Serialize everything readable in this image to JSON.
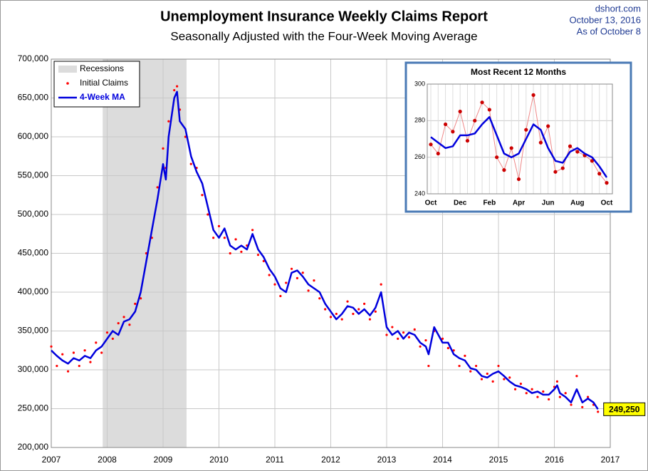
{
  "chart_data": {
    "type": "line",
    "title": "Unemployment Insurance Weekly Claims Report",
    "subtitle": "Seasonally Adjusted with the Four-Week Moving Average",
    "source": [
      "dshort.com",
      "October 13, 2016",
      "As of October 8"
    ],
    "legend": "top-left",
    "grid": true,
    "recession": {
      "name": "Recessions",
      "start": 2007.92,
      "end": 2009.42,
      "color": "#dcdcdc"
    },
    "xlim": [
      2007,
      2017
    ],
    "xticks": [
      2007,
      2008,
      2009,
      2010,
      2011,
      2012,
      2013,
      2014,
      2015,
      2016,
      2017
    ],
    "ylim": [
      200000,
      700000
    ],
    "yticks": [
      {
        "value": 200000,
        "label": "200,000"
      },
      {
        "value": 250000,
        "label": "250,000"
      },
      {
        "value": 300000,
        "label": "300,000"
      },
      {
        "value": 350000,
        "label": "350,000"
      },
      {
        "value": 400000,
        "label": "400,000"
      },
      {
        "value": 450000,
        "label": "450,000"
      },
      {
        "value": 500000,
        "label": "500,000"
      },
      {
        "value": 550000,
        "label": "550,000"
      },
      {
        "value": 600000,
        "label": "600,000"
      },
      {
        "value": 650000,
        "label": "650,000"
      },
      {
        "value": 700000,
        "label": "700,000"
      }
    ],
    "x": [
      2007.0,
      2007.1,
      2007.2,
      2007.3,
      2007.4,
      2007.5,
      2007.6,
      2007.7,
      2007.8,
      2007.9,
      2008.0,
      2008.1,
      2008.2,
      2008.3,
      2008.4,
      2008.5,
      2008.6,
      2008.7,
      2008.8,
      2008.9,
      2009.0,
      2009.05,
      2009.1,
      2009.2,
      2009.25,
      2009.3,
      2009.4,
      2009.5,
      2009.6,
      2009.7,
      2009.8,
      2009.9,
      2010.0,
      2010.1,
      2010.2,
      2010.3,
      2010.4,
      2010.5,
      2010.6,
      2010.7,
      2010.8,
      2010.9,
      2011.0,
      2011.1,
      2011.2,
      2011.3,
      2011.4,
      2011.5,
      2011.6,
      2011.7,
      2011.8,
      2011.9,
      2012.0,
      2012.1,
      2012.2,
      2012.3,
      2012.4,
      2012.5,
      2012.6,
      2012.7,
      2012.8,
      2012.9,
      2013.0,
      2013.1,
      2013.2,
      2013.3,
      2013.4,
      2013.5,
      2013.6,
      2013.7,
      2013.75,
      2013.85,
      2014.0,
      2014.1,
      2014.2,
      2014.3,
      2014.4,
      2014.5,
      2014.6,
      2014.7,
      2014.8,
      2014.9,
      2015.0,
      2015.1,
      2015.2,
      2015.3,
      2015.4,
      2015.5,
      2015.6,
      2015.7,
      2015.8,
      2015.9,
      2016.0,
      2016.05,
      2016.1,
      2016.2,
      2016.3,
      2016.4,
      2016.5,
      2016.6,
      2016.7,
      2016.78
    ],
    "series": [
      {
        "name": "Initial Claims",
        "color": "#ff0000",
        "style": "dots",
        "values": [
          330000,
          305000,
          320000,
          298000,
          322000,
          305000,
          325000,
          310000,
          335000,
          322000,
          348000,
          340000,
          360000,
          368000,
          358000,
          385000,
          392000,
          450000,
          470000,
          535000,
          585000,
          560000,
          620000,
          660000,
          665000,
          635000,
          600000,
          565000,
          560000,
          525000,
          500000,
          470000,
          485000,
          470000,
          450000,
          468000,
          452000,
          460000,
          480000,
          448000,
          440000,
          422000,
          410000,
          395000,
          412000,
          430000,
          418000,
          425000,
          402000,
          415000,
          392000,
          378000,
          368000,
          372000,
          365000,
          388000,
          372000,
          378000,
          385000,
          365000,
          375000,
          410000,
          345000,
          355000,
          340000,
          348000,
          342000,
          352000,
          330000,
          338000,
          305000,
          350000,
          340000,
          328000,
          325000,
          305000,
          318000,
          298000,
          305000,
          288000,
          295000,
          285000,
          305000,
          288000,
          290000,
          275000,
          282000,
          270000,
          275000,
          265000,
          272000,
          262000,
          278000,
          285000,
          265000,
          270000,
          255000,
          292000,
          252000,
          265000,
          255000,
          246000
        ]
      },
      {
        "name": "4-Week MA",
        "color": "#0000dd",
        "style": "line",
        "values": [
          325000,
          318000,
          312000,
          308000,
          315000,
          312000,
          318000,
          315000,
          325000,
          330000,
          340000,
          350000,
          345000,
          362000,
          365000,
          375000,
          400000,
          440000,
          480000,
          520000,
          565000,
          545000,
          600000,
          650000,
          658000,
          620000,
          610000,
          575000,
          555000,
          540000,
          510000,
          480000,
          470000,
          482000,
          460000,
          455000,
          460000,
          455000,
          475000,
          455000,
          445000,
          430000,
          420000,
          405000,
          400000,
          425000,
          428000,
          420000,
          410000,
          405000,
          400000,
          385000,
          375000,
          365000,
          372000,
          382000,
          380000,
          372000,
          378000,
          370000,
          380000,
          400000,
          355000,
          345000,
          350000,
          340000,
          348000,
          345000,
          335000,
          330000,
          320000,
          355000,
          335000,
          335000,
          320000,
          315000,
          312000,
          302000,
          300000,
          292000,
          290000,
          295000,
          298000,
          292000,
          285000,
          280000,
          278000,
          275000,
          270000,
          272000,
          268000,
          268000,
          275000,
          280000,
          270000,
          265000,
          258000,
          275000,
          258000,
          263000,
          258000,
          249250
        ],
        "value_labels": [
          null,
          null,
          null,
          null,
          null,
          null,
          null,
          null,
          null,
          null,
          null,
          null,
          null,
          null,
          null,
          null,
          null,
          null,
          null,
          null,
          null,
          null,
          null,
          null,
          null,
          null,
          null,
          null,
          null,
          null,
          null,
          null,
          null,
          null,
          null,
          null,
          null,
          null,
          null,
          null,
          null,
          null,
          null,
          null,
          null,
          null,
          null,
          null,
          null,
          null,
          null,
          null,
          null,
          null,
          null,
          null,
          null,
          null,
          null,
          null,
          null,
          null,
          null,
          null,
          null,
          null,
          null,
          null,
          null,
          null,
          null,
          null,
          null,
          null,
          null,
          null,
          null,
          null,
          null,
          null,
          null,
          null,
          null,
          null,
          null,
          null,
          null,
          null,
          null,
          null,
          null,
          null,
          null,
          null,
          null,
          null,
          null,
          null,
          null,
          null,
          null,
          "249,250"
        ]
      }
    ]
  },
  "inset": {
    "type": "line",
    "title": "Most Recent 12 Months",
    "categories": [
      "Oct",
      null,
      null,
      null,
      "Dec",
      null,
      null,
      null,
      "Feb",
      null,
      null,
      null,
      "Apr",
      null,
      null,
      null,
      "Jun",
      null,
      null,
      null,
      "Aug",
      null,
      null,
      null,
      "Oct"
    ],
    "ylim": [
      240,
      300
    ],
    "yticks": [
      240,
      260,
      280,
      300
    ],
    "grid": true,
    "series": [
      {
        "name": "Initial Claims",
        "color": "#cc0000",
        "style": "dots",
        "values": [
          267,
          262,
          278,
          274,
          285,
          269,
          280,
          290,
          286,
          260,
          253,
          265,
          248,
          275,
          294,
          268,
          277,
          252,
          254,
          266,
          263,
          261,
          258,
          251,
          246
        ]
      },
      {
        "name": "4-Week MA",
        "color": "#0000dd",
        "style": "line",
        "values": [
          271,
          268,
          265,
          266,
          272,
          272,
          273,
          278,
          282,
          272,
          262,
          260,
          262,
          270,
          278,
          275,
          265,
          258,
          257,
          263,
          265,
          262,
          260,
          255,
          249
        ]
      }
    ]
  }
}
